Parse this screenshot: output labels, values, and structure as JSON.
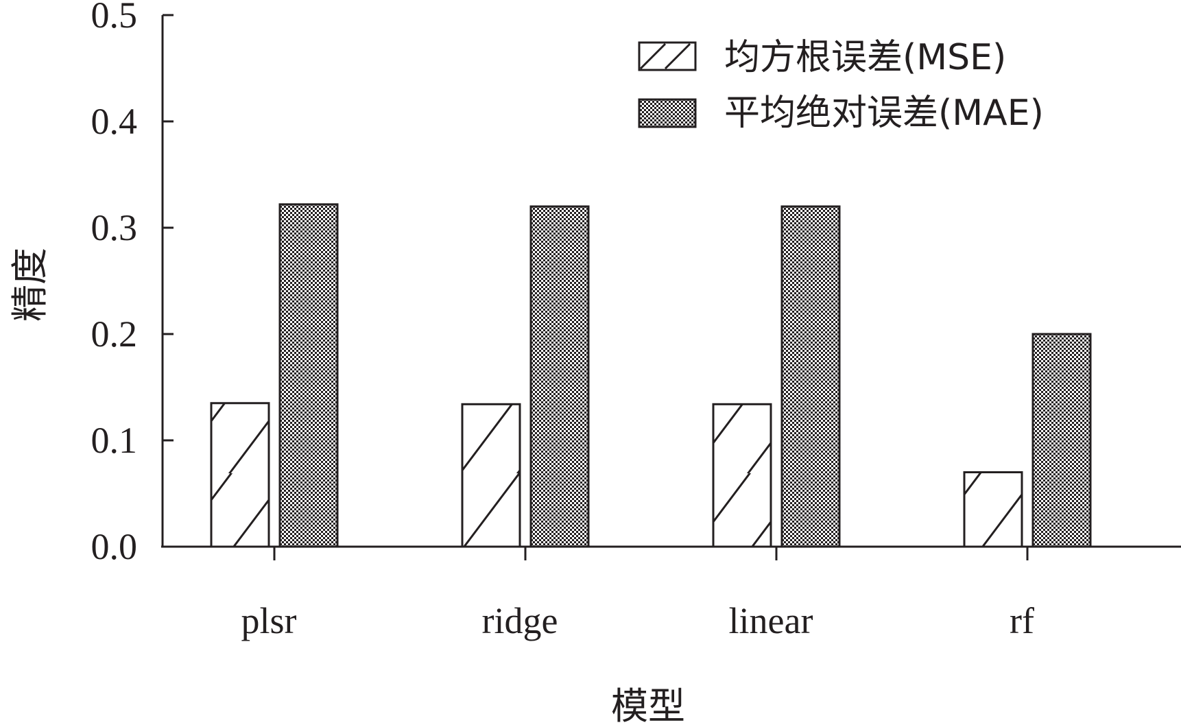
{
  "chart_data": {
    "type": "bar",
    "categories": [
      "plsr",
      "ridge",
      "linear",
      "rf"
    ],
    "series": [
      {
        "name": "均方根误差(MSE)",
        "values": [
          0.135,
          0.134,
          0.134,
          0.07
        ],
        "pattern": "hatch",
        "fill_color": "#ffffff"
      },
      {
        "name": "平均绝对误差(MAE)",
        "values": [
          0.322,
          0.32,
          0.32,
          0.2
        ],
        "pattern": "checker",
        "fill_color": "#231f20"
      }
    ],
    "title": "",
    "xlabel": "模型",
    "ylabel": "精度",
    "ylim": [
      0,
      0.5
    ],
    "yticks": [
      "0.0",
      "0.1",
      "0.2",
      "0.3",
      "0.4",
      "0.5"
    ],
    "grid": false,
    "legend_position": "top-right",
    "colors": {
      "ink": "#231f20",
      "background": "#ffffff"
    }
  }
}
